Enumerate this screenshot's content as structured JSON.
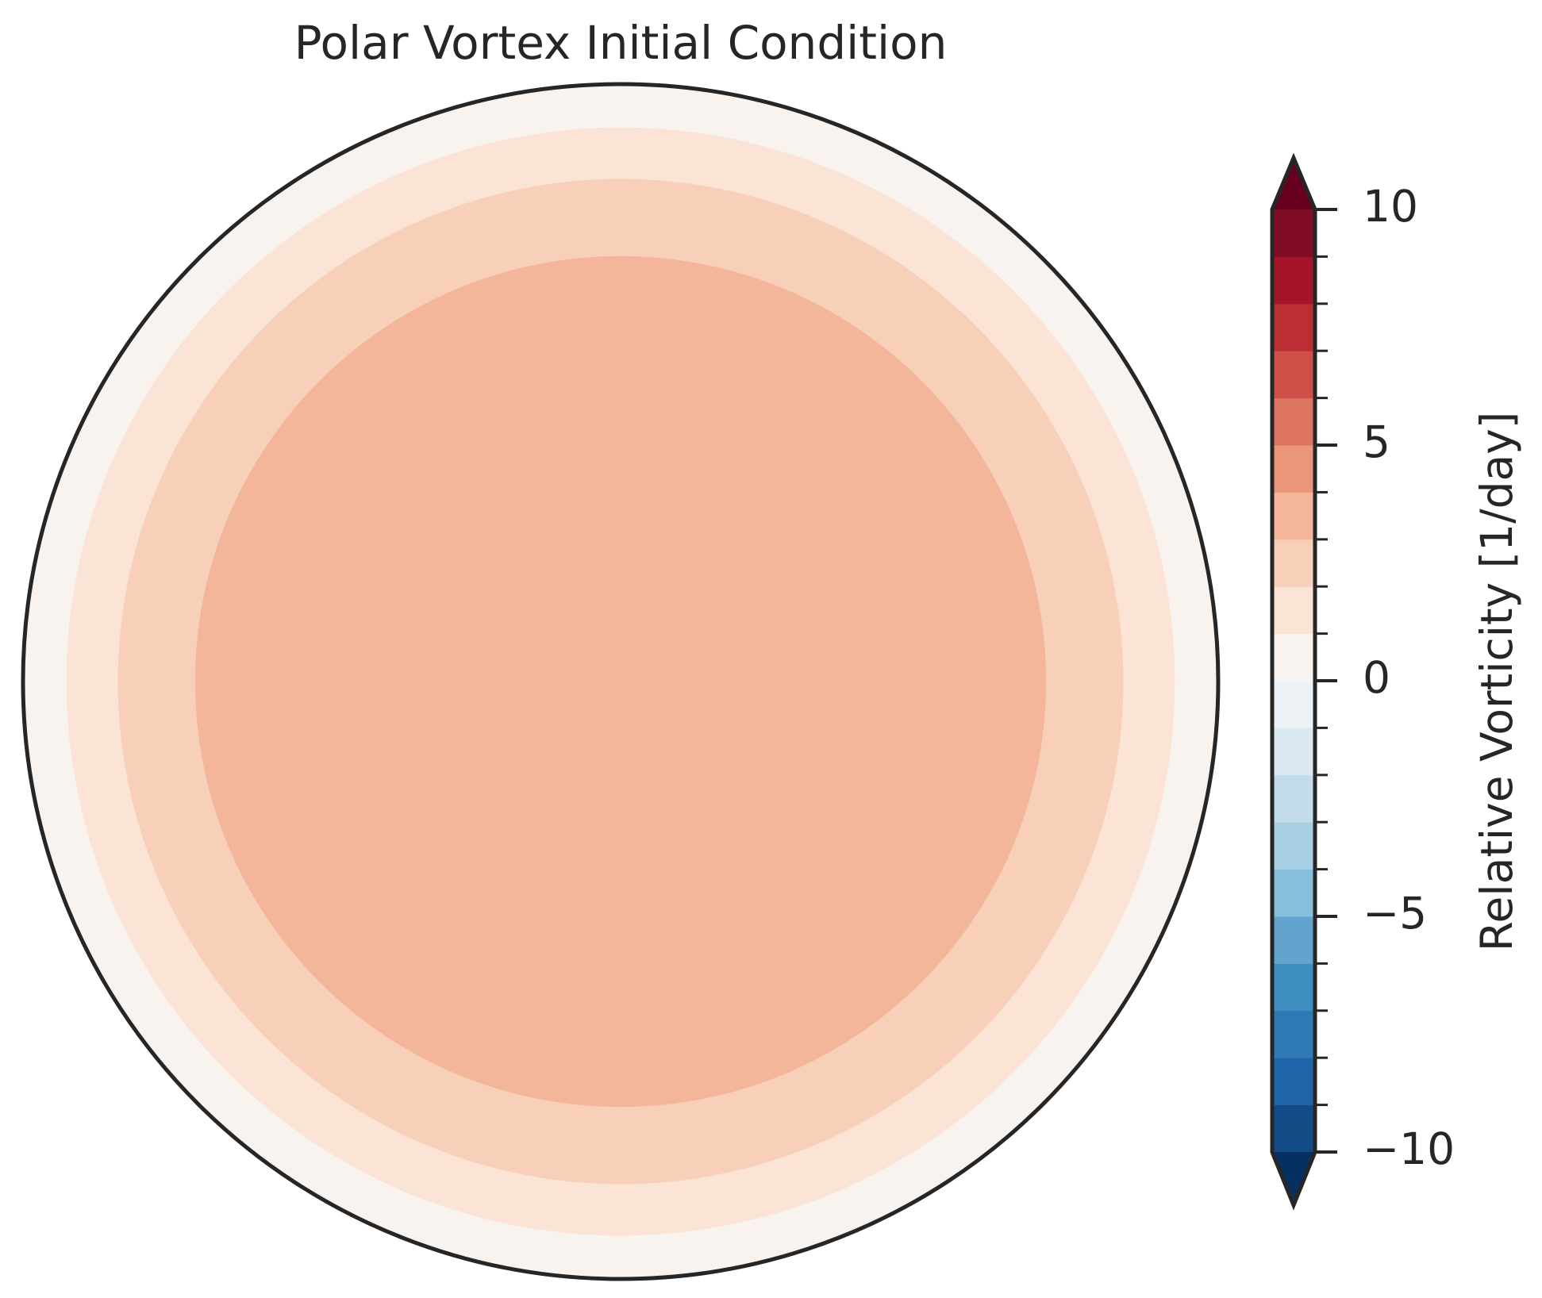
{
  "chart_data": {
    "type": "polar-contour",
    "title": "Polar Vortex Initial Condition",
    "colorbar_label": "Relative Vorticity [1/day]",
    "x": [
      20,
      24,
      29,
      37
    ],
    "values": [
      0.5,
      1.5,
      2.5,
      3.5
    ],
    "xlim": [
      20,
      90
    ],
    "levels": [
      -10,
      -9,
      -8,
      -7,
      -6,
      -5,
      -4,
      -3,
      -2,
      -1,
      0,
      1,
      2,
      3,
      4,
      5,
      6,
      7,
      8,
      9,
      10
    ],
    "colors": [
      "#134b87",
      "#1f63a8",
      "#2f79b5",
      "#3f8ec0",
      "#62a4cd",
      "#87bedc",
      "#a7d0e4",
      "#c3dcec",
      "#dbe9f2",
      "#ecf2f6",
      "#f9f3f0",
      "#fbe3d6",
      "#f8cfb9",
      "#f4b69a",
      "#eb9678",
      "#de7560",
      "#cd5049",
      "#bb2e34",
      "#a51529",
      "#800c25"
    ],
    "under_color": "#053061",
    "over_color": "#67001f",
    "ylim": [
      -10,
      10
    ],
    "yticks": [
      {
        "value": -10,
        "label": "−10"
      },
      {
        "value": -5,
        "label": "−5"
      },
      0,
      5,
      10
    ]
  }
}
